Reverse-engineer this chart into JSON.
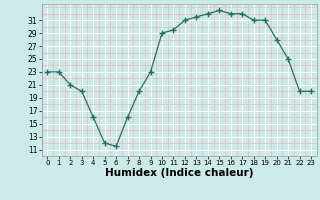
{
  "x": [
    0,
    1,
    2,
    3,
    4,
    5,
    6,
    7,
    8,
    9,
    10,
    11,
    12,
    13,
    14,
    15,
    16,
    17,
    18,
    19,
    20,
    21,
    22,
    23
  ],
  "y": [
    23,
    23,
    21,
    20,
    16,
    12,
    11.5,
    16,
    20,
    23,
    29,
    29.5,
    31,
    31.5,
    32,
    32.5,
    32,
    32,
    31,
    31,
    28,
    25,
    20,
    20
  ],
  "line_color": "#2d6e63",
  "marker": "+",
  "marker_size": 4,
  "bg_color": "#cceae8",
  "grid_major_color": "#ffffff",
  "grid_minor_color": "#e8b8b8",
  "xlabel": "Humidex (Indice chaleur)",
  "xlabel_fontsize": 7.5,
  "ytick_labels": [
    "11",
    "13",
    "15",
    "17",
    "19",
    "21",
    "23",
    "25",
    "27",
    "29",
    "31"
  ],
  "ytick_values": [
    11,
    13,
    15,
    17,
    19,
    21,
    23,
    25,
    27,
    29,
    31
  ],
  "xtick_values": [
    0,
    1,
    2,
    3,
    4,
    5,
    6,
    7,
    8,
    9,
    10,
    11,
    12,
    13,
    14,
    15,
    16,
    17,
    18,
    19,
    20,
    21,
    22,
    23
  ],
  "ylim": [
    10,
    33.5
  ],
  "xlim": [
    -0.5,
    23.5
  ]
}
